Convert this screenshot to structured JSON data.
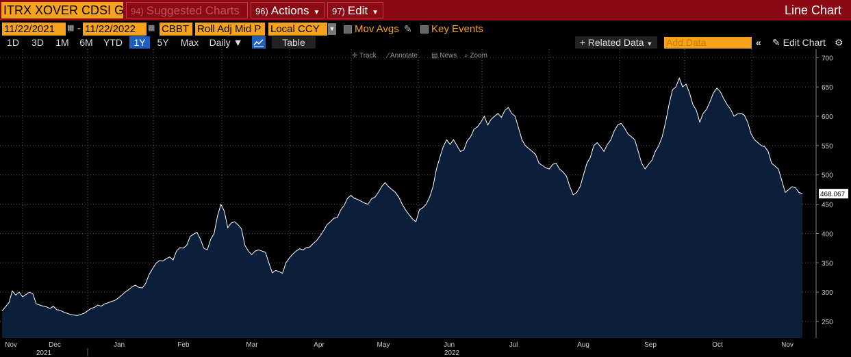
{
  "header": {
    "ticker": "ITRX XOVER CDSI GE",
    "suggested": {
      "num": "94)",
      "label": "Suggested Charts"
    },
    "actions": {
      "num": "96)",
      "label": "Actions"
    },
    "edit": {
      "num": "97)",
      "label": "Edit"
    },
    "chart_type": "Line Chart"
  },
  "controls": {
    "start_date": "11/22/2021",
    "end_date": "11/22/2022",
    "source": "CBBT",
    "field": "Roll Adj Mid P",
    "currency": "Local CCY",
    "mov_avgs": "Mov Avgs",
    "key_events": "Key Events"
  },
  "tabs": {
    "periods": [
      "1D",
      "3D",
      "1M",
      "6M",
      "YTD",
      "1Y",
      "5Y",
      "Max"
    ],
    "active": "1Y",
    "frequency": "Daily",
    "table": "Table",
    "related": "Related Data",
    "add_data_placeholder": "Add Data",
    "edit_chart": "Edit Chart"
  },
  "chart_tools": [
    "Track",
    "Annotate",
    "News",
    "Zoom"
  ],
  "colors": {
    "accent": "#f6a21a",
    "header": "#8b0a14",
    "line": "#ffffff",
    "fill": "#0b1f3a",
    "active_tab": "#1e5fbf"
  },
  "chart_data": {
    "type": "area",
    "series": [
      {
        "values": [
          268,
          275,
          282,
          302,
          295,
          300,
          292,
          296,
          300,
          297,
          280,
          278,
          276,
          275,
          272,
          276,
          270,
          269,
          266,
          264,
          262,
          261,
          260,
          262,
          264,
          268,
          272,
          274,
          278,
          276,
          280,
          282,
          284,
          286,
          290,
          295,
          300,
          304,
          309,
          312,
          308,
          307,
          315,
          330,
          340,
          349,
          354,
          353,
          357,
          360,
          355,
          370,
          376,
          375,
          380,
          395,
          399,
          402,
          390,
          375,
          372,
          390,
          400,
          430,
          450,
          438,
          410,
          418,
          420,
          415,
          408,
          380,
          370,
          364,
          370,
          372,
          370,
          368,
          350,
          333,
          337,
          335,
          332,
          350,
          358,
          365,
          370,
          374,
          372,
          376,
          377,
          383,
          388,
          396,
          405,
          415,
          420,
          426,
          427,
          440,
          448,
          460,
          465,
          460,
          458,
          455,
          452,
          450,
          459,
          462,
          470,
          480,
          487,
          480,
          475,
          470,
          462,
          450,
          440,
          432,
          425,
          420,
          440,
          444,
          450,
          462,
          480,
          510,
          530,
          548,
          560,
          552,
          560,
          550,
          540,
          542,
          558,
          565,
          578,
          582,
          590,
          600,
          585,
          595,
          600,
          605,
          598,
          610,
          615,
          605,
          600,
          580,
          560,
          550,
          545,
          540,
          535,
          520,
          516,
          512,
          510,
          518,
          520,
          510,
          505,
          498,
          480,
          466,
          470,
          480,
          500,
          520,
          530,
          550,
          555,
          548,
          540,
          552,
          560,
          575,
          585,
          588,
          580,
          570,
          565,
          560,
          540,
          520,
          510,
          518,
          525,
          540,
          550,
          565,
          590,
          620,
          645,
          650,
          665,
          650,
          655,
          640,
          620,
          610,
          590,
          605,
          612,
          625,
          640,
          648,
          642,
          630,
          620,
          612,
          600,
          604,
          605,
          602,
          590,
          570,
          560,
          555,
          550,
          548,
          540,
          520,
          515,
          510,
          490,
          470,
          475,
          480,
          478,
          470,
          468
        ]
      }
    ],
    "last_value_label": "468.067",
    "yticks": [
      250,
      300,
      350,
      400,
      450,
      500,
      550,
      600,
      650,
      700
    ],
    "ylim": [
      222,
      705
    ],
    "months": [
      "Nov",
      "Dec",
      "Jan",
      "Feb",
      "Mar",
      "Apr",
      "May",
      "Jun",
      "Jul",
      "Aug",
      "Sep",
      "Oct",
      "Nov"
    ],
    "years": [
      "2021",
      "2022"
    ],
    "grid": true
  }
}
